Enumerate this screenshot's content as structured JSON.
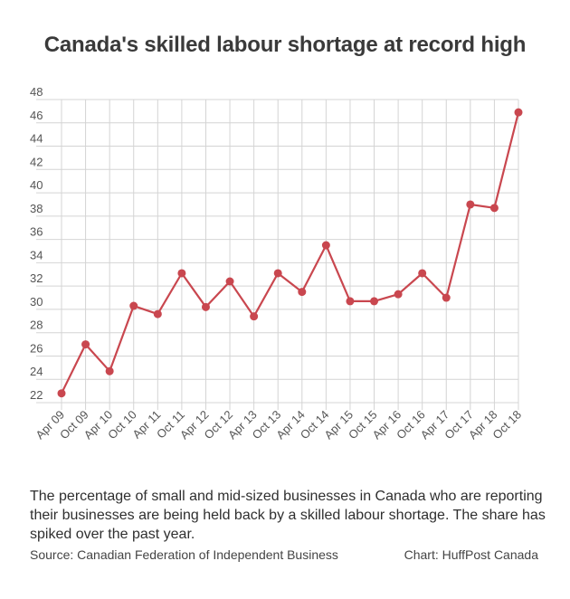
{
  "title": "Canada's skilled labour shortage at record high",
  "description": "The percentage of small and mid-sized businesses in Canada who are reporting their businesses are being held back by a skilled labour shortage. The share has spiked over the past year.",
  "source": "Source: Canadian Federation of Independent Business",
  "credit": "Chart: HuffPost Canada",
  "colors": {
    "line": "#c9474f",
    "grid": "#d4d4d4"
  },
  "chart_data": {
    "type": "line",
    "categories": [
      "Apr 09",
      "Oct 09",
      "Apr 10",
      "Oct 10",
      "Apr 11",
      "Oct 11",
      "Apr 12",
      "Oct 12",
      "Apr 13",
      "Oct 13",
      "Apr 14",
      "Oct 14",
      "Apr 15",
      "Oct 15",
      "Apr 16",
      "Oct 16",
      "Apr 17",
      "Oct 17",
      "Apr 18",
      "Oct 18"
    ],
    "values": [
      22.8,
      27.0,
      24.7,
      30.3,
      29.6,
      33.1,
      30.2,
      32.4,
      29.4,
      33.1,
      31.5,
      35.5,
      30.7,
      30.7,
      31.3,
      33.1,
      31.0,
      39.0,
      38.7,
      46.9
    ],
    "ylim": [
      22,
      48
    ],
    "yticks": [
      22,
      24,
      26,
      28,
      30,
      32,
      34,
      36,
      38,
      40,
      42,
      44,
      46,
      48
    ],
    "grid": true,
    "xlabel": "",
    "ylabel": ""
  }
}
